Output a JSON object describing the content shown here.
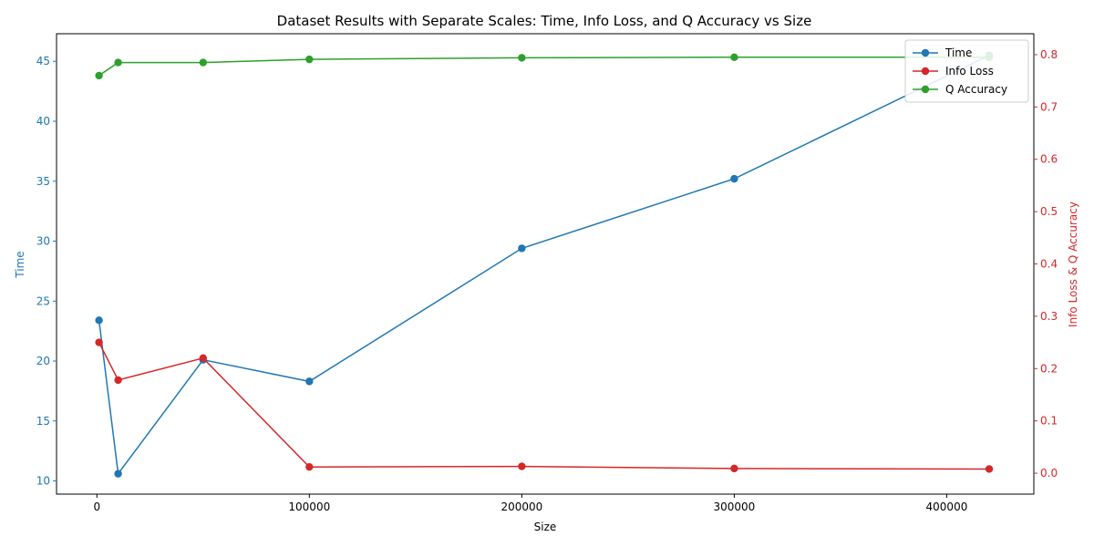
{
  "chart_data": {
    "type": "line",
    "title": "Dataset Results with Separate Scales: Time, Info Loss, and Q Accuracy vs Size",
    "xlabel": "Size",
    "ylabel_left": "Time",
    "ylabel_right": "Info Loss & Q Accuracy",
    "x": [
      1000,
      10000,
      50000,
      100000,
      200000,
      300000,
      420000
    ],
    "xlim": [
      -19000,
      441000
    ],
    "ylim_left": [
      8.9,
      47.3
    ],
    "ylim_right": [
      -0.04,
      0.84
    ],
    "x_ticks": [
      0,
      100000,
      200000,
      300000,
      400000
    ],
    "y_ticks_left": [
      10,
      15,
      20,
      25,
      30,
      35,
      40,
      45
    ],
    "y_ticks_right": [
      0.0,
      0.1,
      0.2,
      0.3,
      0.4,
      0.5,
      0.6,
      0.7,
      0.8
    ],
    "grid": false,
    "legend_position": "top-right",
    "series": [
      {
        "name": "Time",
        "axis": "left",
        "color": "#1f77b4",
        "values": [
          23.4,
          10.6,
          20.1,
          18.3,
          29.4,
          35.2,
          45.5
        ]
      },
      {
        "name": "Info Loss",
        "axis": "right",
        "color": "#d62728",
        "values": [
          0.25,
          0.178,
          0.22,
          0.012,
          0.013,
          0.009,
          0.008
        ]
      },
      {
        "name": "Q Accuracy",
        "axis": "right",
        "color": "#2ca02c",
        "values": [
          0.76,
          0.785,
          0.785,
          0.791,
          0.794,
          0.795,
          0.795
        ]
      }
    ]
  }
}
